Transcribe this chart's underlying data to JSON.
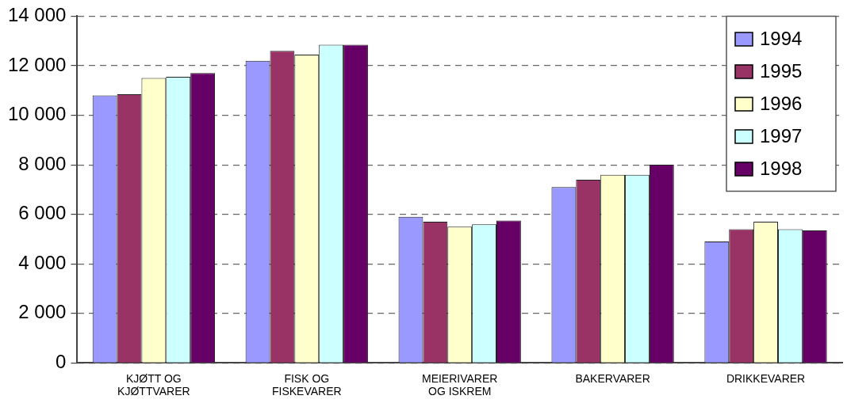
{
  "chart_data": {
    "type": "bar",
    "categories": [
      "KJØTT OG KJØTTVARER",
      "FISK OG FISKEVARER",
      "MEIERIVARER OG ISKREM",
      "BAKERVARER",
      "DRIKKEVARER"
    ],
    "series": [
      {
        "name": "1994",
        "color": "#9999ff",
        "values": [
          10800,
          12200,
          5900,
          7100,
          4900
        ]
      },
      {
        "name": "1995",
        "color": "#993366",
        "values": [
          10850,
          12600,
          5700,
          7400,
          5400
        ]
      },
      {
        "name": "1996",
        "color": "#ffffcc",
        "values": [
          11500,
          12450,
          5500,
          7600,
          5700
        ]
      },
      {
        "name": "1997",
        "color": "#ccffff",
        "values": [
          11550,
          12850,
          5600,
          7600,
          5400
        ]
      },
      {
        "name": "1998",
        "color": "#660066",
        "values": [
          11700,
          12850,
          5750,
          8000,
          5350
        ]
      }
    ],
    "ylim": [
      0,
      14000
    ],
    "yticks": [
      {
        "value": 0,
        "label": "0"
      },
      {
        "value": 2000,
        "label": "2 000"
      },
      {
        "value": 4000,
        "label": "4 000"
      },
      {
        "value": 6000,
        "label": "6 000"
      },
      {
        "value": 8000,
        "label": "8 000"
      },
      {
        "value": 10000,
        "label": "10 000"
      },
      {
        "value": 12000,
        "label": "12 000"
      },
      {
        "value": 14000,
        "label": "14 000"
      }
    ],
    "grid": "y",
    "legend": "top right"
  }
}
